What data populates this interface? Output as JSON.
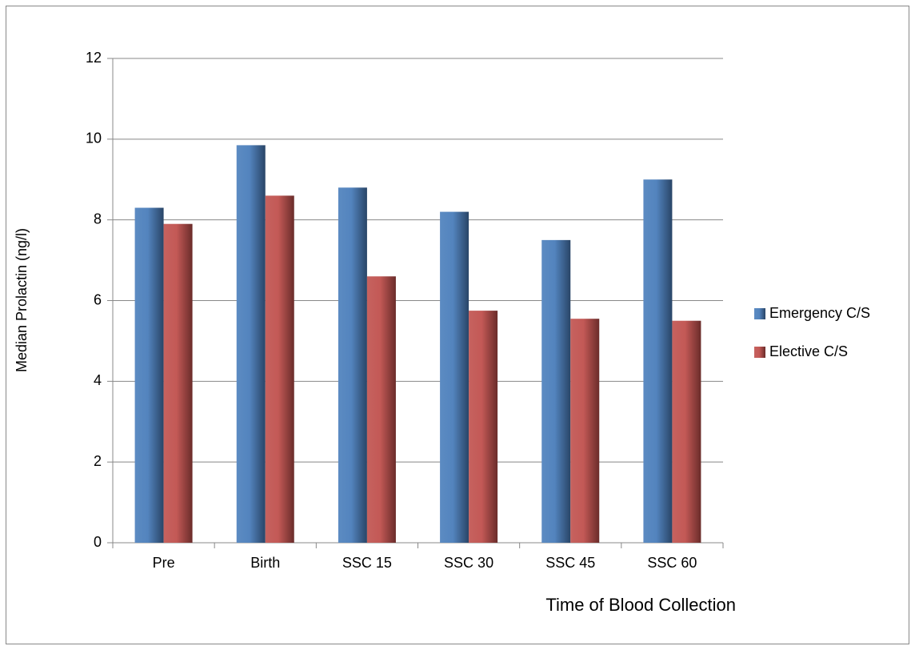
{
  "chart_data": {
    "type": "bar",
    "x_label": "Time of Blood Collection",
    "y_label": "Median Prolactin (ng/l)",
    "categories": [
      "Pre",
      "Birth",
      "SSC 15",
      "SSC 30",
      "SSC 45",
      "SSC 60"
    ],
    "series": [
      {
        "name": "Emergency C/S",
        "color": "#4a7ebb",
        "values": [
          8.3,
          9.85,
          8.8,
          8.2,
          7.5,
          9.0
        ]
      },
      {
        "name": "Elective C/S",
        "color": "#c0504d",
        "values": [
          7.9,
          8.6,
          6.6,
          5.75,
          5.55,
          5.5
        ]
      }
    ],
    "ylim": [
      0,
      12
    ],
    "yticks": [
      0,
      2,
      4,
      6,
      8,
      10,
      12
    ],
    "grid": true,
    "legend": "right"
  }
}
